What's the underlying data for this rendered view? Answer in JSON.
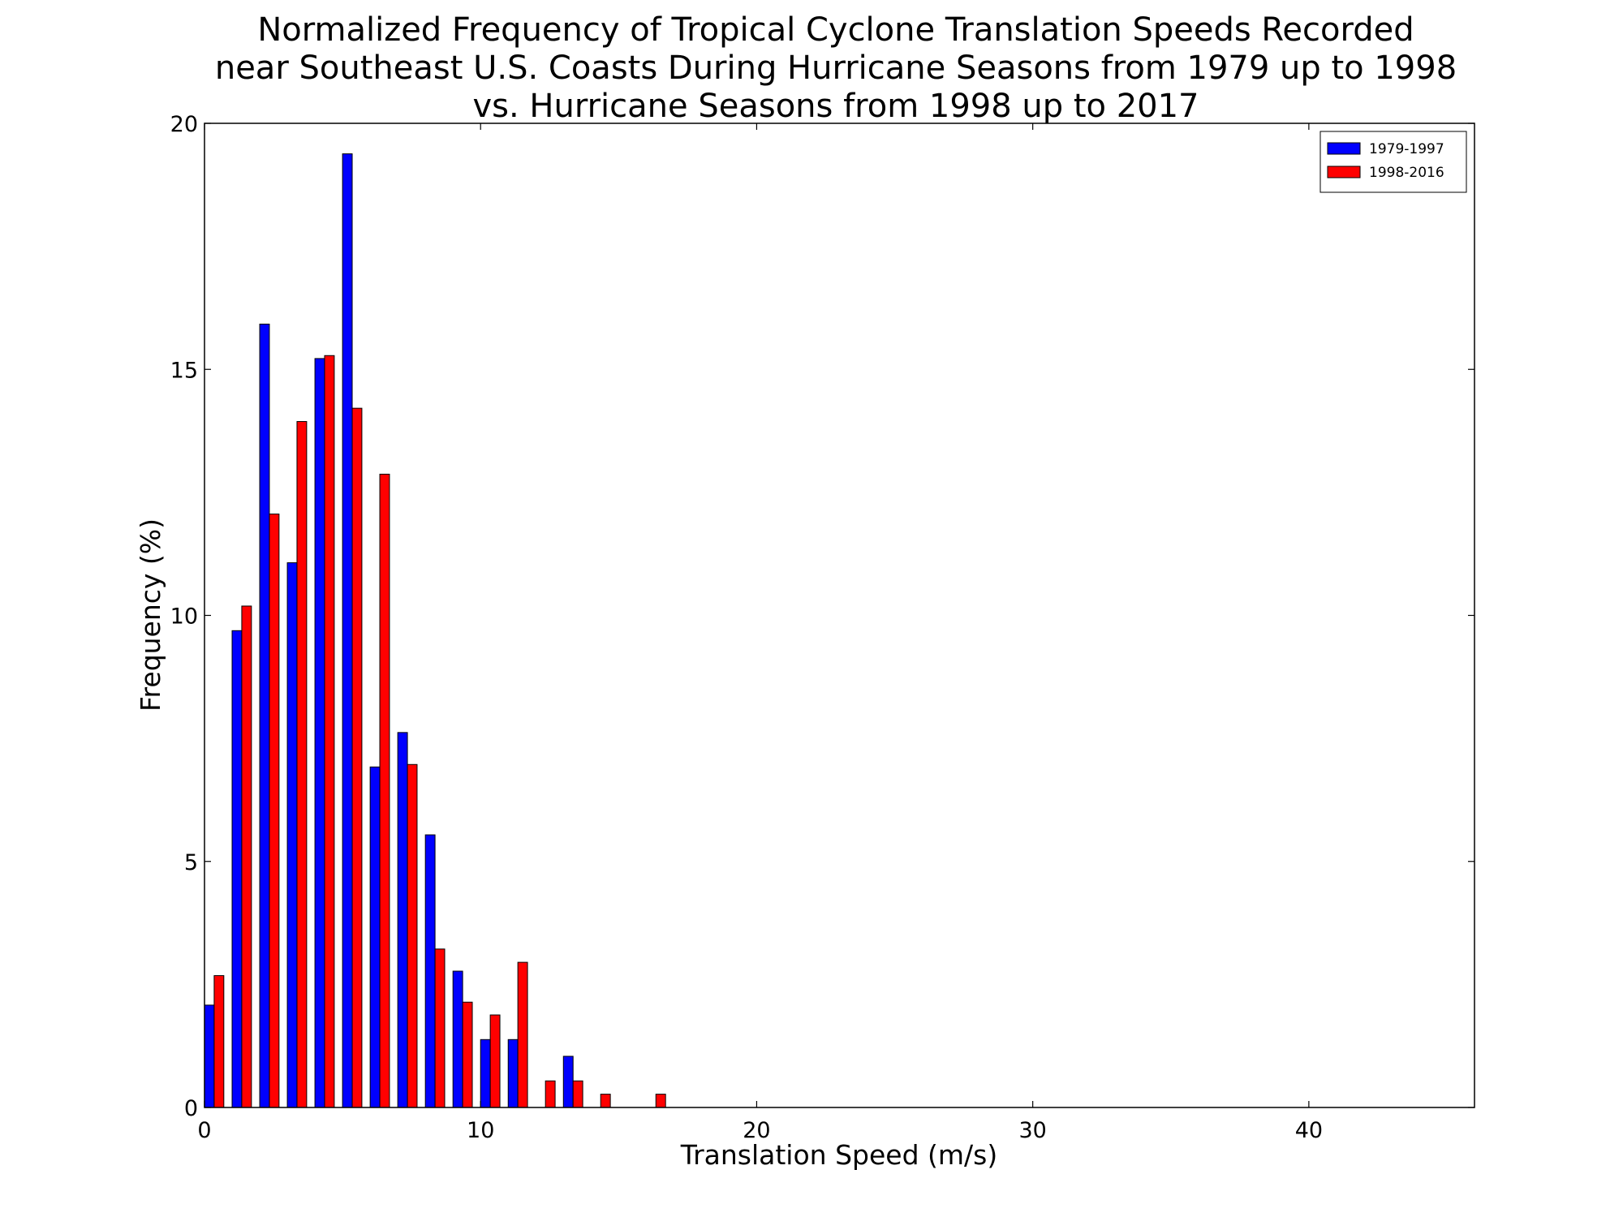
{
  "chart_data": {
    "type": "bar",
    "title": [
      "Normalized Frequency of Tropical Cyclone Translation Speeds Recorded",
      "near Southeast U.S. Coasts During Hurricane Seasons from 1979 up to 1998",
      "vs. Hurricane Seasons from 1998 up to 2017"
    ],
    "xlabel": "Translation Speed (m/s)",
    "ylabel": "Frequency (%)",
    "xlim": [
      0,
      46
    ],
    "ylim": [
      0,
      20
    ],
    "xticks": [
      0,
      10,
      20,
      30,
      40
    ],
    "yticks": [
      0,
      5,
      10,
      15,
      20
    ],
    "bin_width": 1,
    "bar_width_fraction": 0.35,
    "grid": false,
    "legend_position": "top-right",
    "x": [
      0,
      1,
      2,
      3,
      4,
      5,
      6,
      7,
      8,
      9,
      10,
      11,
      12,
      13,
      14,
      15,
      16,
      17,
      18,
      19,
      20,
      21,
      22,
      23,
      24,
      25,
      26,
      27,
      28,
      29,
      30,
      31,
      32,
      33,
      34,
      35,
      36,
      37,
      38,
      39,
      40,
      41,
      42,
      43,
      44,
      45
    ],
    "series": [
      {
        "name": "1979-1997",
        "color": "#0000ff",
        "values": [
          2.08,
          9.69,
          15.92,
          11.07,
          15.22,
          19.38,
          6.92,
          7.62,
          5.54,
          2.77,
          1.38,
          1.38,
          0,
          1.04,
          0,
          0,
          0,
          0,
          0,
          0,
          0,
          0,
          0,
          0,
          0,
          0,
          0,
          0,
          0,
          0,
          0,
          0,
          0,
          0,
          0,
          0,
          0,
          0,
          0,
          0,
          0,
          0,
          0,
          0,
          0,
          0
        ]
      },
      {
        "name": "1998-2016",
        "color": "#ff0000",
        "values": [
          2.68,
          10.19,
          12.06,
          13.94,
          15.28,
          14.21,
          12.87,
          6.97,
          3.22,
          2.14,
          1.88,
          2.95,
          0.54,
          0.54,
          0.27,
          0,
          0.27,
          0,
          0,
          0,
          0,
          0,
          0,
          0,
          0,
          0,
          0,
          0,
          0,
          0,
          0,
          0,
          0,
          0,
          0,
          0,
          0,
          0,
          0,
          0,
          0,
          0,
          0,
          0,
          0,
          0
        ]
      }
    ]
  }
}
